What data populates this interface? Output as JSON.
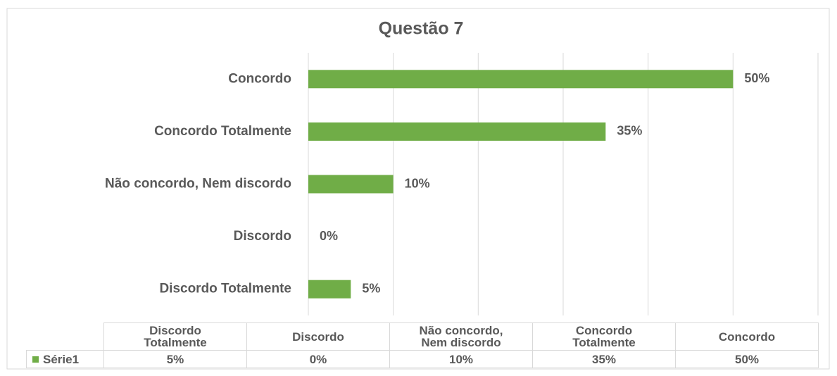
{
  "chart_data": {
    "type": "bar",
    "orientation": "horizontal",
    "title": "Questão 7",
    "categories": [
      "Discordo Totalmente",
      "Discordo",
      "Não concordo, Nem discordo",
      "Concordo Totalmente",
      "Concordo"
    ],
    "series": [
      {
        "name": "Série1",
        "color": "#70ad47",
        "values": [
          5,
          0,
          10,
          35,
          50
        ],
        "value_labels": [
          "5%",
          "0%",
          "10%",
          "35%",
          "50%"
        ]
      }
    ],
    "xlim": [
      0,
      60
    ],
    "xticks": [
      0,
      10,
      20,
      30,
      40,
      50,
      60
    ],
    "grid": true,
    "data_table": true
  }
}
